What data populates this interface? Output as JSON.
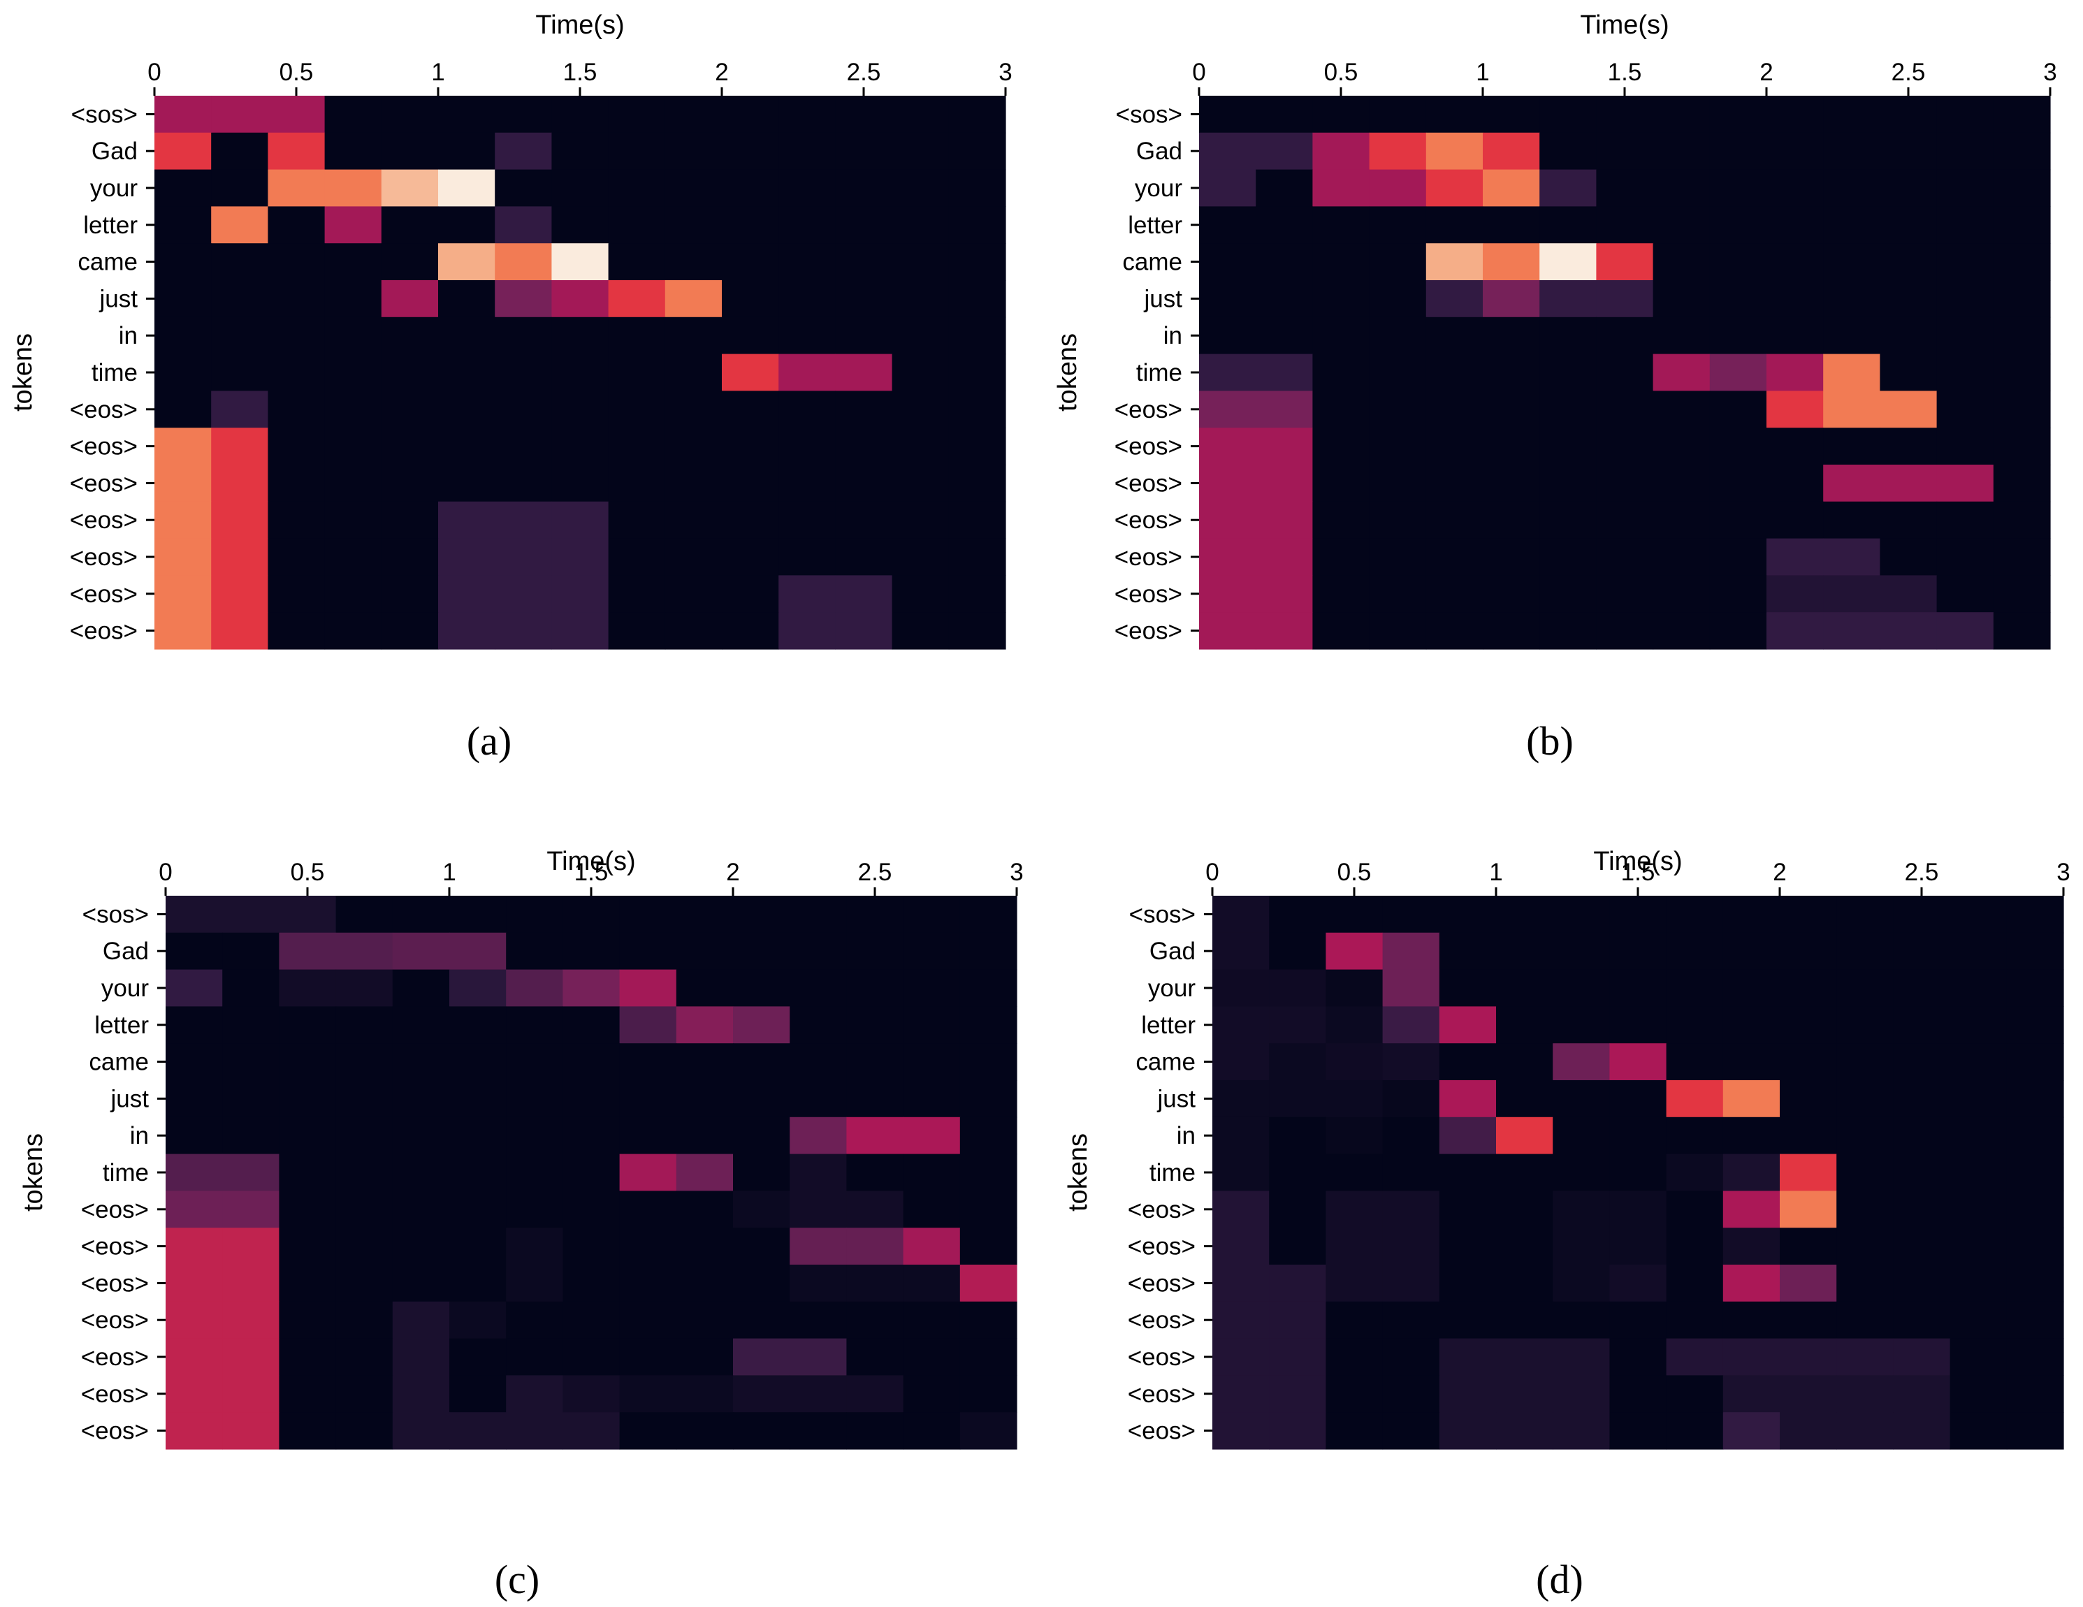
{
  "chart_data": [
    {
      "type": "heatmap",
      "panel": "a",
      "caption": "(a)",
      "xlabel": "Time(s)",
      "ylabel": "tokens",
      "x_ticks": [
        "0",
        "0.5",
        "1",
        "1.5",
        "2",
        "2.5",
        "3"
      ],
      "x_range": [
        0,
        3
      ],
      "time_step": 0.2,
      "tokens": [
        "<sos>",
        "Gad",
        "your",
        "letter",
        "came",
        "just",
        "in",
        "time",
        "<eos>",
        "<eos>",
        "<eos>",
        "<eos>",
        "<eos>",
        "<eos>",
        "<eos>"
      ],
      "colorscale": "rocket",
      "values": [
        [
          0.4,
          0.4,
          0.4,
          0,
          0,
          0,
          0,
          0,
          0,
          0,
          0,
          0,
          0,
          0,
          0
        ],
        [
          0.58,
          0,
          0.58,
          0,
          0,
          0,
          0.12,
          0,
          0,
          0,
          0,
          0,
          0,
          0,
          0
        ],
        [
          0,
          0,
          0.72,
          0.72,
          0.88,
          1.0,
          0,
          0,
          0,
          0,
          0,
          0,
          0,
          0,
          0
        ],
        [
          0,
          0.72,
          0,
          0.4,
          0,
          0,
          0.12,
          0,
          0,
          0,
          0,
          0,
          0,
          0,
          0
        ],
        [
          0,
          0,
          0,
          0,
          0,
          0.85,
          0.72,
          1.0,
          0,
          0,
          0,
          0,
          0,
          0,
          0
        ],
        [
          0,
          0,
          0,
          0,
          0.4,
          0,
          0.28,
          0.4,
          0.58,
          0.72,
          0,
          0,
          0,
          0,
          0
        ],
        [
          0,
          0,
          0,
          0,
          0,
          0,
          0,
          0,
          0,
          0,
          0,
          0,
          0,
          0,
          0
        ],
        [
          0,
          0,
          0,
          0,
          0,
          0,
          0,
          0,
          0,
          0,
          0.58,
          0.4,
          0.4,
          0,
          0
        ],
        [
          0,
          0.12,
          0,
          0,
          0,
          0,
          0,
          0,
          0,
          0,
          0,
          0,
          0,
          0,
          0
        ],
        [
          0.72,
          0.58,
          0,
          0,
          0,
          0,
          0,
          0,
          0,
          0,
          0,
          0,
          0,
          0,
          0
        ],
        [
          0.72,
          0.58,
          0,
          0,
          0,
          0,
          0,
          0,
          0,
          0,
          0,
          0,
          0,
          0,
          0
        ],
        [
          0.72,
          0.58,
          0,
          0,
          0,
          0.12,
          0.12,
          0.12,
          0,
          0,
          0,
          0,
          0,
          0,
          0
        ],
        [
          0.72,
          0.58,
          0,
          0,
          0,
          0.12,
          0.12,
          0.12,
          0,
          0,
          0,
          0,
          0,
          0,
          0
        ],
        [
          0.72,
          0.58,
          0,
          0,
          0,
          0.12,
          0.12,
          0.12,
          0,
          0,
          0,
          0.12,
          0.12,
          0,
          0
        ],
        [
          0.72,
          0.58,
          0,
          0,
          0,
          0.12,
          0.12,
          0.12,
          0,
          0,
          0,
          0.12,
          0.12,
          0,
          0
        ]
      ]
    },
    {
      "type": "heatmap",
      "panel": "b",
      "caption": "(b)",
      "xlabel": "Time(s)",
      "ylabel": "tokens",
      "x_ticks": [
        "0",
        "0.5",
        "1",
        "1.5",
        "2",
        "2.5",
        "3"
      ],
      "x_range": [
        0,
        3
      ],
      "time_step": 0.2,
      "tokens": [
        "<sos>",
        "Gad",
        "your",
        "letter",
        "came",
        "just",
        "in",
        "time",
        "<eos>",
        "<eos>",
        "<eos>",
        "<eos>",
        "<eos>",
        "<eos>",
        "<eos>"
      ],
      "colorscale": "rocket",
      "values": [
        [
          0,
          0,
          0,
          0,
          0,
          0,
          0,
          0,
          0,
          0,
          0,
          0,
          0,
          0,
          0
        ],
        [
          0.12,
          0.12,
          0.4,
          0.58,
          0.72,
          0.58,
          0,
          0,
          0,
          0,
          0,
          0,
          0,
          0,
          0
        ],
        [
          0.12,
          0,
          0.4,
          0.4,
          0.58,
          0.72,
          0.12,
          0,
          0,
          0,
          0,
          0,
          0,
          0,
          0
        ],
        [
          0,
          0,
          0,
          0,
          0,
          0,
          0,
          0,
          0,
          0,
          0,
          0,
          0,
          0,
          0
        ],
        [
          0,
          0,
          0,
          0,
          0.85,
          0.72,
          1.0,
          0.58,
          0,
          0,
          0,
          0,
          0,
          0,
          0
        ],
        [
          0,
          0,
          0,
          0,
          0.12,
          0.28,
          0.12,
          0.12,
          0,
          0,
          0,
          0,
          0,
          0,
          0
        ],
        [
          0,
          0,
          0,
          0,
          0,
          0,
          0,
          0,
          0,
          0,
          0,
          0,
          0,
          0,
          0
        ],
        [
          0.12,
          0.12,
          0,
          0,
          0,
          0,
          0,
          0,
          0.4,
          0.28,
          0.4,
          0.72,
          0,
          0,
          0
        ],
        [
          0.28,
          0.28,
          0,
          0,
          0,
          0,
          0,
          0,
          0,
          0,
          0.58,
          0.72,
          0.72,
          0,
          0
        ],
        [
          0.4,
          0.4,
          0,
          0,
          0,
          0,
          0,
          0,
          0,
          0,
          0,
          0,
          0,
          0,
          0
        ],
        [
          0.4,
          0.4,
          0,
          0,
          0,
          0,
          0,
          0,
          0,
          0,
          0,
          0.4,
          0.4,
          0.4,
          0
        ],
        [
          0.4,
          0.4,
          0,
          0,
          0,
          0,
          0,
          0,
          0,
          0,
          0,
          0,
          0,
          0,
          0
        ],
        [
          0.4,
          0.4,
          0,
          0,
          0,
          0,
          0,
          0,
          0,
          0,
          0.12,
          0.12,
          0,
          0,
          0
        ],
        [
          0.4,
          0.4,
          0,
          0,
          0,
          0,
          0,
          0,
          0,
          0,
          0.08,
          0.08,
          0.08,
          0,
          0
        ],
        [
          0.4,
          0.4,
          0,
          0,
          0,
          0,
          0,
          0,
          0,
          0,
          0.12,
          0.12,
          0.12,
          0.12,
          0
        ]
      ]
    },
    {
      "type": "heatmap",
      "panel": "c",
      "caption": "(c)",
      "xlabel": "Time(s)",
      "ylabel": "tokens",
      "x_ticks": [
        "0",
        "0.5",
        "1",
        "1.5",
        "2",
        "2.5",
        "3"
      ],
      "x_range": [
        0,
        3
      ],
      "time_step": 0.2,
      "tokens": [
        "<sos>",
        "Gad",
        "your",
        "letter",
        "came",
        "just",
        "in",
        "time",
        "<eos>",
        "<eos>",
        "<eos>",
        "<eos>",
        "<eos>",
        "<eos>",
        "<eos>"
      ],
      "colorscale": "rocket",
      "values": [
        [
          0.06,
          0.06,
          0.06,
          0,
          0,
          0,
          0,
          0,
          0,
          0,
          0,
          0,
          0,
          0,
          0
        ],
        [
          0,
          0,
          0.2,
          0.2,
          0.22,
          0.22,
          0,
          0,
          0,
          0,
          0,
          0,
          0,
          0,
          0
        ],
        [
          0.12,
          0,
          0.04,
          0.04,
          0,
          0.1,
          0.2,
          0.28,
          0.4,
          0,
          0,
          0,
          0,
          0,
          0
        ],
        [
          0,
          0,
          0,
          0,
          0,
          0,
          0,
          0,
          0.18,
          0.32,
          0.26,
          0,
          0,
          0,
          0
        ],
        [
          0,
          0,
          0,
          0,
          0,
          0,
          0,
          0,
          0,
          0,
          0,
          0,
          0,
          0,
          0
        ],
        [
          0,
          0,
          0,
          0,
          0,
          0,
          0,
          0,
          0,
          0,
          0,
          0,
          0,
          0,
          0
        ],
        [
          0,
          0,
          0,
          0,
          0,
          0,
          0,
          0,
          0,
          0,
          0,
          0.26,
          0.42,
          0.42,
          0
        ],
        [
          0.2,
          0.2,
          0,
          0,
          0,
          0,
          0,
          0,
          0.4,
          0.26,
          0,
          0.04,
          0,
          0,
          0
        ],
        [
          0.26,
          0.26,
          0,
          0,
          0,
          0,
          0,
          0,
          0,
          0,
          0.02,
          0.04,
          0.04,
          0,
          0
        ],
        [
          0.48,
          0.48,
          0,
          0,
          0,
          0,
          0.02,
          0,
          0,
          0,
          0,
          0.24,
          0.24,
          0.4,
          0
        ],
        [
          0.48,
          0.48,
          0,
          0,
          0,
          0,
          0.02,
          0,
          0,
          0,
          0,
          0.02,
          0.02,
          0.02,
          0.44
        ],
        [
          0.48,
          0.48,
          0,
          0,
          0.06,
          0.02,
          0,
          0,
          0,
          0,
          0,
          0,
          0,
          0,
          0
        ],
        [
          0.48,
          0.48,
          0,
          0,
          0.06,
          0,
          0,
          0,
          0,
          0,
          0.14,
          0.14,
          0,
          0,
          0
        ],
        [
          0.48,
          0.48,
          0,
          0,
          0.06,
          0,
          0.06,
          0.04,
          0.02,
          0.02,
          0.04,
          0.04,
          0.04,
          0,
          0
        ],
        [
          0.48,
          0.48,
          0,
          0,
          0.06,
          0.06,
          0.06,
          0.06,
          0,
          0,
          0,
          0,
          0,
          0,
          0.02
        ]
      ]
    },
    {
      "type": "heatmap",
      "panel": "d",
      "caption": "(d)",
      "xlabel": "Time(s)",
      "ylabel": "tokens",
      "x_ticks": [
        "0",
        "0.5",
        "1",
        "1.5",
        "2",
        "2.5",
        "3"
      ],
      "x_range": [
        0,
        3
      ],
      "time_step": 0.2,
      "tokens": [
        "<sos>",
        "Gad",
        "your",
        "letter",
        "came",
        "just",
        "in",
        "time",
        "<eos>",
        "<eos>",
        "<eos>",
        "<eos>",
        "<eos>",
        "<eos>",
        "<eos>"
      ],
      "colorscale": "rocket",
      "values": [
        [
          0.04,
          0,
          0,
          0,
          0,
          0,
          0,
          0,
          0,
          0,
          0,
          0,
          0,
          0,
          0
        ],
        [
          0.04,
          0,
          0.42,
          0.26,
          0,
          0,
          0,
          0,
          0,
          0,
          0,
          0,
          0,
          0,
          0
        ],
        [
          0.03,
          0.03,
          0.01,
          0.26,
          0,
          0,
          0,
          0,
          0,
          0,
          0,
          0,
          0,
          0,
          0
        ],
        [
          0.04,
          0.04,
          0.02,
          0.14,
          0.42,
          0,
          0,
          0,
          0,
          0,
          0,
          0,
          0,
          0,
          0
        ],
        [
          0.04,
          0.02,
          0.03,
          0.04,
          0,
          0,
          0.26,
          0.42,
          0,
          0,
          0,
          0,
          0,
          0,
          0
        ],
        [
          0.02,
          0.02,
          0.02,
          0.01,
          0.42,
          0,
          0,
          0,
          0.58,
          0.72,
          0,
          0,
          0,
          0,
          0
        ],
        [
          0.02,
          0,
          0.01,
          0,
          0.16,
          0.58,
          0,
          0,
          0,
          0,
          0,
          0,
          0,
          0,
          0
        ],
        [
          0.02,
          0,
          0,
          0,
          0,
          0,
          0,
          0,
          0.02,
          0.06,
          0.58,
          0,
          0,
          0,
          0
        ],
        [
          0.08,
          0,
          0.04,
          0.04,
          0,
          0,
          0.02,
          0.02,
          0,
          0.42,
          0.72,
          0,
          0,
          0,
          0
        ],
        [
          0.08,
          0,
          0.04,
          0.04,
          0,
          0,
          0.02,
          0.02,
          0,
          0.04,
          0,
          0,
          0,
          0,
          0
        ],
        [
          0.08,
          0.08,
          0.04,
          0.04,
          0,
          0,
          0.02,
          0.04,
          0,
          0.42,
          0.26,
          0,
          0,
          0,
          0
        ],
        [
          0.08,
          0.08,
          0,
          0,
          0,
          0,
          0,
          0,
          0,
          0,
          0,
          0,
          0,
          0,
          0
        ],
        [
          0.08,
          0.08,
          0,
          0,
          0.06,
          0.06,
          0.06,
          0,
          0.08,
          0.08,
          0.08,
          0.08,
          0.08,
          0,
          0
        ],
        [
          0.08,
          0.08,
          0,
          0,
          0.06,
          0.06,
          0.06,
          0,
          0,
          0.06,
          0.06,
          0.06,
          0.06,
          0,
          0
        ],
        [
          0.08,
          0.08,
          0,
          0,
          0.06,
          0.06,
          0.06,
          0,
          0,
          0.12,
          0.06,
          0.06,
          0.06,
          0,
          0
        ]
      ]
    }
  ]
}
